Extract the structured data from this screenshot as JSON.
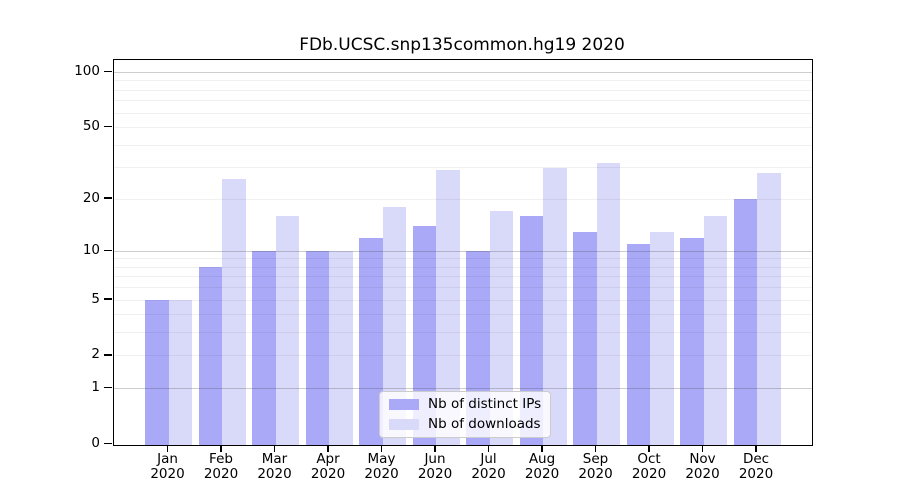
{
  "title": "FDb.UCSC.snp135common.hg19 2020",
  "chart_data": {
    "type": "bar",
    "title": "FDb.UCSC.snp135common.hg19 2020",
    "categories": [
      "Jan 2020",
      "Feb 2020",
      "Mar 2020",
      "Apr 2020",
      "May 2020",
      "Jun 2020",
      "Jul 2020",
      "Aug 2020",
      "Sep 2020",
      "Oct 2020",
      "Nov 2020",
      "Dec 2020"
    ],
    "series": [
      {
        "name": "Nb of distinct IPs",
        "color": "#a9a9f7",
        "values": [
          5,
          8,
          10,
          10,
          12,
          14,
          10,
          16,
          13,
          11,
          12,
          20
        ]
      },
      {
        "name": "Nb of downloads",
        "color": "#d9d9fa",
        "values": [
          5,
          26,
          16,
          10,
          18,
          29,
          17,
          30,
          32,
          13,
          16,
          28
        ]
      }
    ],
    "xlabel": "",
    "ylabel": "",
    "yscale": "log1p",
    "ylim": [
      0,
      117
    ],
    "yticks": [
      0,
      1,
      2,
      5,
      10,
      20,
      50,
      100
    ],
    "gridlines_major": [
      1,
      10,
      100
    ],
    "gridlines_minor": [
      2,
      3,
      4,
      5,
      6,
      7,
      8,
      9,
      20,
      30,
      40,
      50,
      60,
      70,
      80,
      90
    ],
    "grid": true,
    "legend_position": "bottom-center"
  },
  "legend": {
    "items": [
      {
        "label": "Nb of distinct IPs",
        "color": "#a9a9f7"
      },
      {
        "label": "Nb of downloads",
        "color": "#d9d9fa"
      }
    ]
  }
}
